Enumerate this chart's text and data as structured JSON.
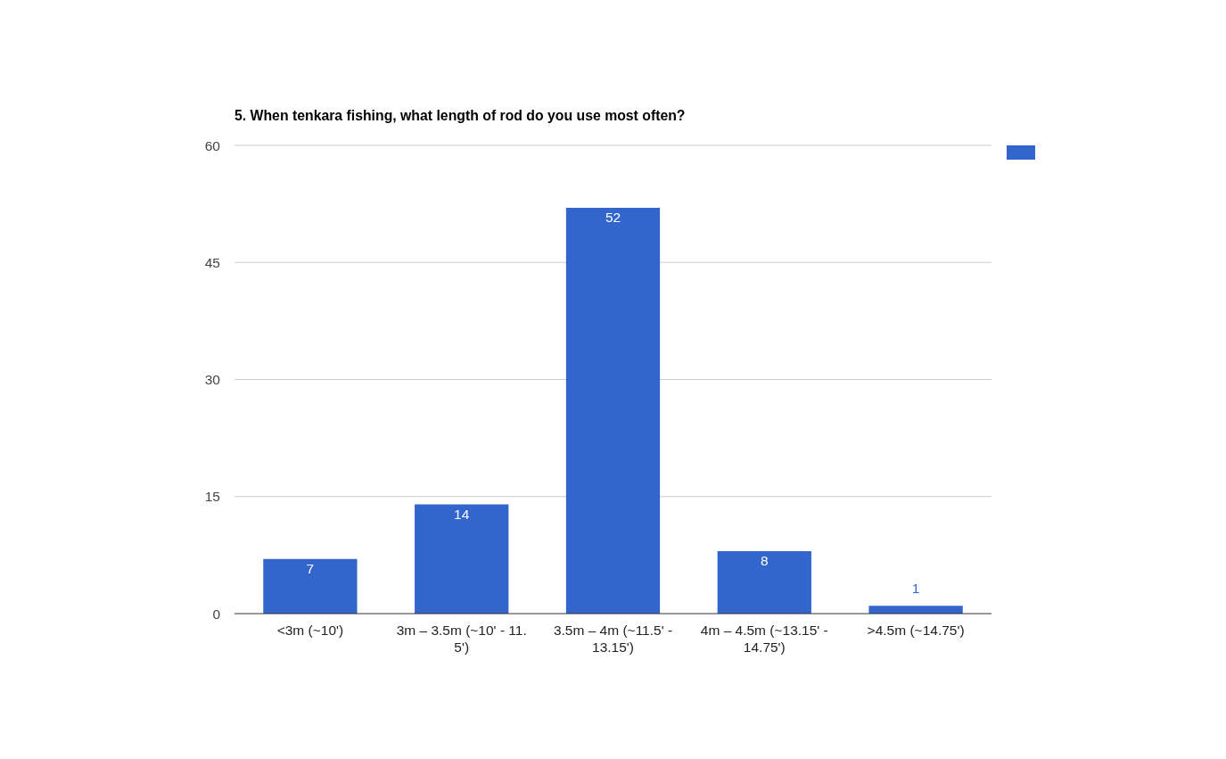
{
  "chart_data": {
    "type": "bar",
    "title": "5. When tenkara fishing, what length of rod do you use most often?",
    "categories": [
      "<3m (~10')",
      "3m – 3.5m (~10' - 11.5')",
      "3.5m – 4m (~11.5' - 13.15')",
      "4m – 4.5m (~13.15' - 14.75')",
      ">4.5m (~14.75')"
    ],
    "series": [
      {
        "color": "#3366cc",
        "values": [
          7,
          14,
          52,
          8,
          1
        ]
      }
    ],
    "ylim": [
      0,
      60
    ],
    "yticks": [
      0,
      15,
      30,
      45,
      60
    ],
    "grid": "y",
    "data_labels": true
  }
}
